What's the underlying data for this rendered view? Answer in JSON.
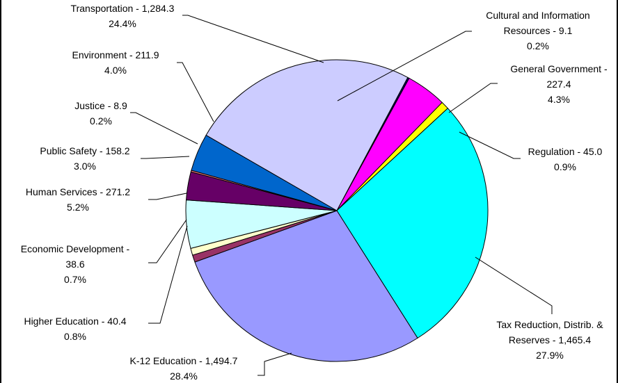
{
  "chart_data": {
    "type": "pie",
    "title": "",
    "slices": [
      {
        "label": "Cultural and Information Resources - 9.1",
        "name": "Cultural and Information Resources",
        "value": 9.1,
        "pct": "0.2%",
        "color": "#000066"
      },
      {
        "label": "General Government - 227.4",
        "name": "General Government",
        "value": 227.4,
        "pct": "4.3%",
        "color": "#ff00ff"
      },
      {
        "label": "Regulation - 45.0",
        "name": "Regulation",
        "value": 45.0,
        "pct": "0.9%",
        "color": "#ffff00"
      },
      {
        "label": "Tax Reduction, Distrib. & Reserves - 1,465.4",
        "name": "Tax Reduction, Distrib. & Reserves",
        "value": 1465.4,
        "pct": "27.9%",
        "color": "#00ffff"
      },
      {
        "label": "K-12 Education - 1,494.7",
        "name": "K-12 Education",
        "value": 1494.7,
        "pct": "28.4%",
        "color": "#9999ff"
      },
      {
        "label": "Higher Education - 40.4",
        "name": "Higher Education",
        "value": 40.4,
        "pct": "0.8%",
        "color": "#993366"
      },
      {
        "label": "Economic Development - 38.6",
        "name": "Economic Development",
        "value": 38.6,
        "pct": "0.7%",
        "color": "#ffffcc"
      },
      {
        "label": "Human Services - 271.2",
        "name": "Human Services",
        "value": 271.2,
        "pct": "5.2%",
        "color": "#ccffff"
      },
      {
        "label": "Public Safety - 158.2",
        "name": "Public Safety",
        "value": 158.2,
        "pct": "3.0%",
        "color": "#660066"
      },
      {
        "label": "Justice - 8.9",
        "name": "Justice",
        "value": 8.9,
        "pct": "0.2%",
        "color": "#ff8080"
      },
      {
        "label": "Environment - 211.9",
        "name": "Environment",
        "value": 211.9,
        "pct": "4.0%",
        "color": "#0066cc"
      },
      {
        "label": "Transportation - 1,284.3",
        "name": "Transportation",
        "value": 1284.3,
        "pct": "24.4%",
        "color": "#ccccff"
      }
    ]
  },
  "labels": {
    "cultural": {
      "line1": "Cultural and Information",
      "line2": "Resources - 9.1",
      "pct": "0.2%"
    },
    "general": {
      "line1": "General Government -",
      "line2": "227.4",
      "pct": "4.3%"
    },
    "regulation": {
      "line1": "Regulation - 45.0",
      "pct": "0.9%"
    },
    "tax": {
      "line1": "Tax Reduction, Distrib. &",
      "line2": "Reserves - 1,465.4",
      "pct": "27.9%"
    },
    "k12": {
      "line1": "K-12 Education - 1,494.7",
      "pct": "28.4%"
    },
    "higher": {
      "line1": "Higher Education - 40.4",
      "pct": "0.8%"
    },
    "economic": {
      "line1": "Economic Development -",
      "line2": "38.6",
      "pct": "0.7%"
    },
    "human": {
      "line1": "Human Services - 271.2",
      "pct": "5.2%"
    },
    "publicsafety": {
      "line1": "Public Safety - 158.2",
      "pct": "3.0%"
    },
    "justice": {
      "line1": "Justice - 8.9",
      "pct": "0.2%"
    },
    "environment": {
      "line1": "Environment - 211.9",
      "pct": "4.0%"
    },
    "transportation": {
      "line1": "Transportation - 1,284.3",
      "pct": "24.4%"
    }
  }
}
